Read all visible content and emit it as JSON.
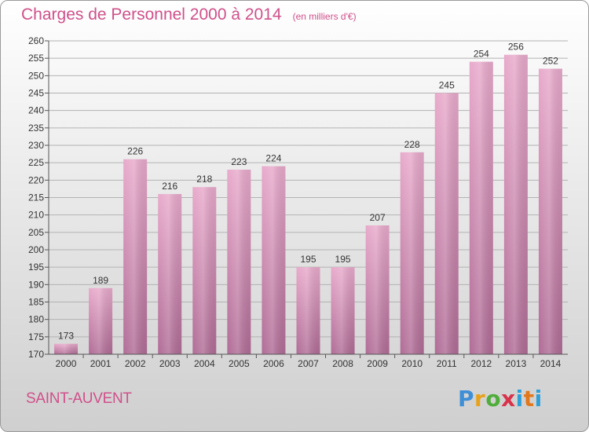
{
  "title": "Charges de Personnel 2000 à 2014",
  "subtitle": "(en milliers d'€)",
  "town": "SAINT-AUVENT",
  "logo": {
    "text": "Proxiti",
    "letters": [
      "P",
      "r",
      "o",
      "x",
      "i",
      "t",
      "i"
    ]
  },
  "colors": {
    "accent": "#d0508a",
    "bar_top": "#e8aacb",
    "bar_bottom": "#b06c96"
  },
  "chart_data": {
    "type": "bar",
    "categories": [
      "2000",
      "2001",
      "2002",
      "2003",
      "2004",
      "2005",
      "2006",
      "2007",
      "2008",
      "2009",
      "2010",
      "2011",
      "2012",
      "2013",
      "2014"
    ],
    "values": [
      173,
      189,
      226,
      216,
      218,
      223,
      224,
      195,
      195,
      207,
      228,
      245,
      254,
      256,
      252
    ],
    "title": "Charges de Personnel 2000 à 2014",
    "subtitle": "(en milliers d'€)",
    "xlabel": "",
    "ylabel": "",
    "ylim": [
      170,
      260
    ],
    "yticks": [
      170,
      175,
      180,
      185,
      190,
      195,
      200,
      205,
      210,
      215,
      220,
      225,
      230,
      235,
      240,
      245,
      250,
      255,
      260
    ],
    "grid": true,
    "legend": "none"
  }
}
